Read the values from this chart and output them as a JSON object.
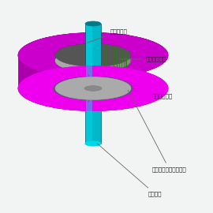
{
  "background_color": "#f0f4f4",
  "labels": {
    "shaft": "シャフト",
    "end_ring": "かご（エンドリング）",
    "stator_core": "ステータコア",
    "cage_bar": "かご（バー）",
    "rotor_core": "ロータコア"
  },
  "colors": {
    "shaft_bright": "#00d8e8",
    "shaft_mid": "#00b8c8",
    "shaft_dark": "#007a8a",
    "stator_bright": "#ee00ee",
    "stator_mid": "#cc00cc",
    "stator_dark": "#880088",
    "stator_side": "#aa00aa",
    "rotor_bright": "#88ee00",
    "rotor_mid": "#66cc00",
    "rotor_dark": "#448800",
    "end_ring_bright": "#aaaaaa",
    "end_ring_mid": "#888888",
    "end_ring_dark": "#555555",
    "stator_inner_dark": "#555577",
    "stator_inner_mid": "#7777aa",
    "teeth_color": "#cc44cc",
    "background": "#f2f4f4"
  }
}
